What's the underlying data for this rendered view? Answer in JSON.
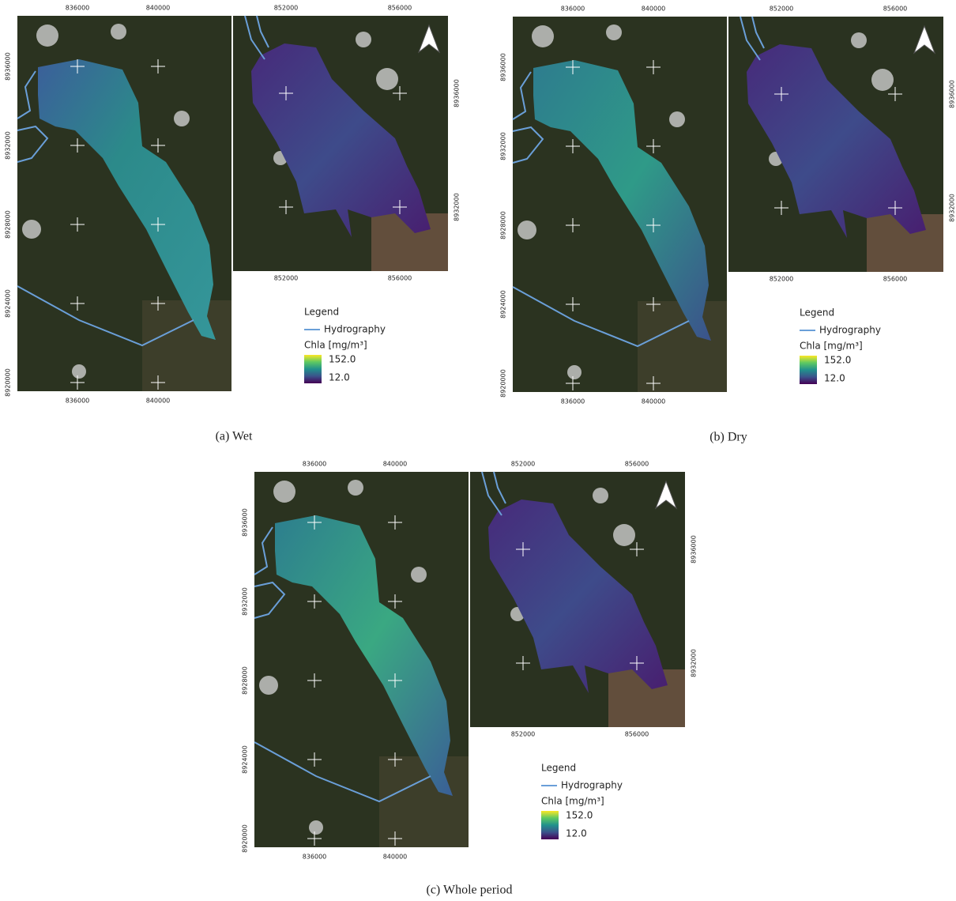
{
  "panels": [
    {
      "caption": "(a) Wet",
      "left": {
        "x_ticks_top": [
          "836000",
          "840000"
        ],
        "x_ticks_bottom": [
          "836000",
          "840000"
        ],
        "y_ticks": [
          "8936000",
          "8932000",
          "8928000",
          "8924000",
          "8920000"
        ]
      },
      "right": {
        "x_ticks_top": [
          "852000",
          "856000"
        ],
        "x_ticks_bottom": [
          "852000",
          "856000"
        ],
        "y_ticks": [
          "8936000",
          "8932000"
        ]
      },
      "legend": {
        "title": "Legend",
        "hydrography": "Hydrography",
        "colorbar_title": "Chla [mg/m³]",
        "max": "152.0",
        "min": "12.0"
      }
    },
    {
      "caption": "(b) Dry",
      "left": {
        "x_ticks_top": [
          "836000",
          "840000"
        ],
        "x_ticks_bottom": [
          "836000",
          "840000"
        ],
        "y_ticks": [
          "8936000",
          "8932000",
          "8928000",
          "8924000",
          "8920000"
        ]
      },
      "right": {
        "x_ticks_top": [
          "852000",
          "856000"
        ],
        "x_ticks_bottom": [
          "852000",
          "856000"
        ],
        "y_ticks": [
          "8936000",
          "8932000"
        ]
      },
      "legend": {
        "title": "Legend",
        "hydrography": "Hydrography",
        "colorbar_title": "Chla [mg/m³]",
        "max": "152.0",
        "min": "12.0"
      }
    },
    {
      "caption": "(c) Whole period",
      "left": {
        "x_ticks_top": [
          "836000",
          "840000"
        ],
        "x_ticks_bottom": [
          "836000",
          "840000"
        ],
        "y_ticks": [
          "8936000",
          "8932000",
          "8928000",
          "8924000",
          "8920000"
        ]
      },
      "right": {
        "x_ticks_top": [
          "852000",
          "856000"
        ],
        "x_ticks_bottom": [
          "852000",
          "856000"
        ],
        "y_ticks": [
          "8936000",
          "8932000"
        ]
      },
      "legend": {
        "title": "Legend",
        "hydrography": "Hydrography",
        "colorbar_title": "Chla [mg/m³]",
        "max": "152.0",
        "min": "12.0"
      }
    }
  ]
}
